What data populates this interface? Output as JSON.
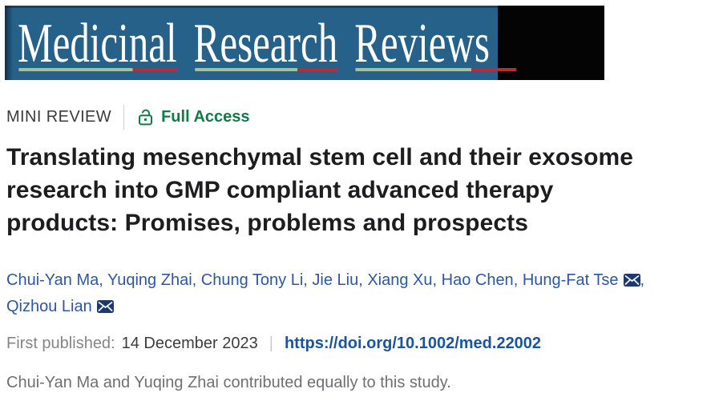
{
  "banner": {
    "journal_name": "Medicinal Research Reviews",
    "words": [
      "Medicinal",
      "Research",
      "Reviews"
    ],
    "colors": {
      "background": "#26618a",
      "side_panel": "#040404",
      "text": "#ffffff",
      "underline": "#a9bf96",
      "underline_accent": "#bb2b35"
    }
  },
  "meta": {
    "category_label": "MINI REVIEW",
    "access_label": "Full Access",
    "access_icon": "open-lock-icon",
    "access_color": "#0e7c45"
  },
  "article": {
    "title_lines": [
      "Translating mesenchymal stem cell and their exosome",
      "research into GMP compliant advanced therapy",
      "products: Promises, problems and prospects"
    ],
    "authors": [
      {
        "name": "Chui-Yan Ma"
      },
      {
        "name": "Yuqing Zhai"
      },
      {
        "name": "Chung Tony Li"
      },
      {
        "name": "Jie Liu"
      },
      {
        "name": "Xiang Xu"
      },
      {
        "name": "Hao Chen"
      },
      {
        "name": "Hung-Fat Tse",
        "mail": true,
        "break_after": true
      },
      {
        "name": "Qizhou Lian",
        "mail": true
      }
    ],
    "mail_icon": "mail-icon",
    "published_label": "First published:",
    "published_date": "14 December 2023",
    "doi_link": "https://doi.org/10.1002/med.22002",
    "contribution_note": "Chui-Yan Ma and Yuqing Zhai contributed equally to this study."
  },
  "colors": {
    "author_link": "#2b57a5",
    "doi_link": "#1a54a1",
    "category_text": "#3b3b3f",
    "title_text": "#1d1d1f",
    "note_text": "#6f6f74"
  }
}
